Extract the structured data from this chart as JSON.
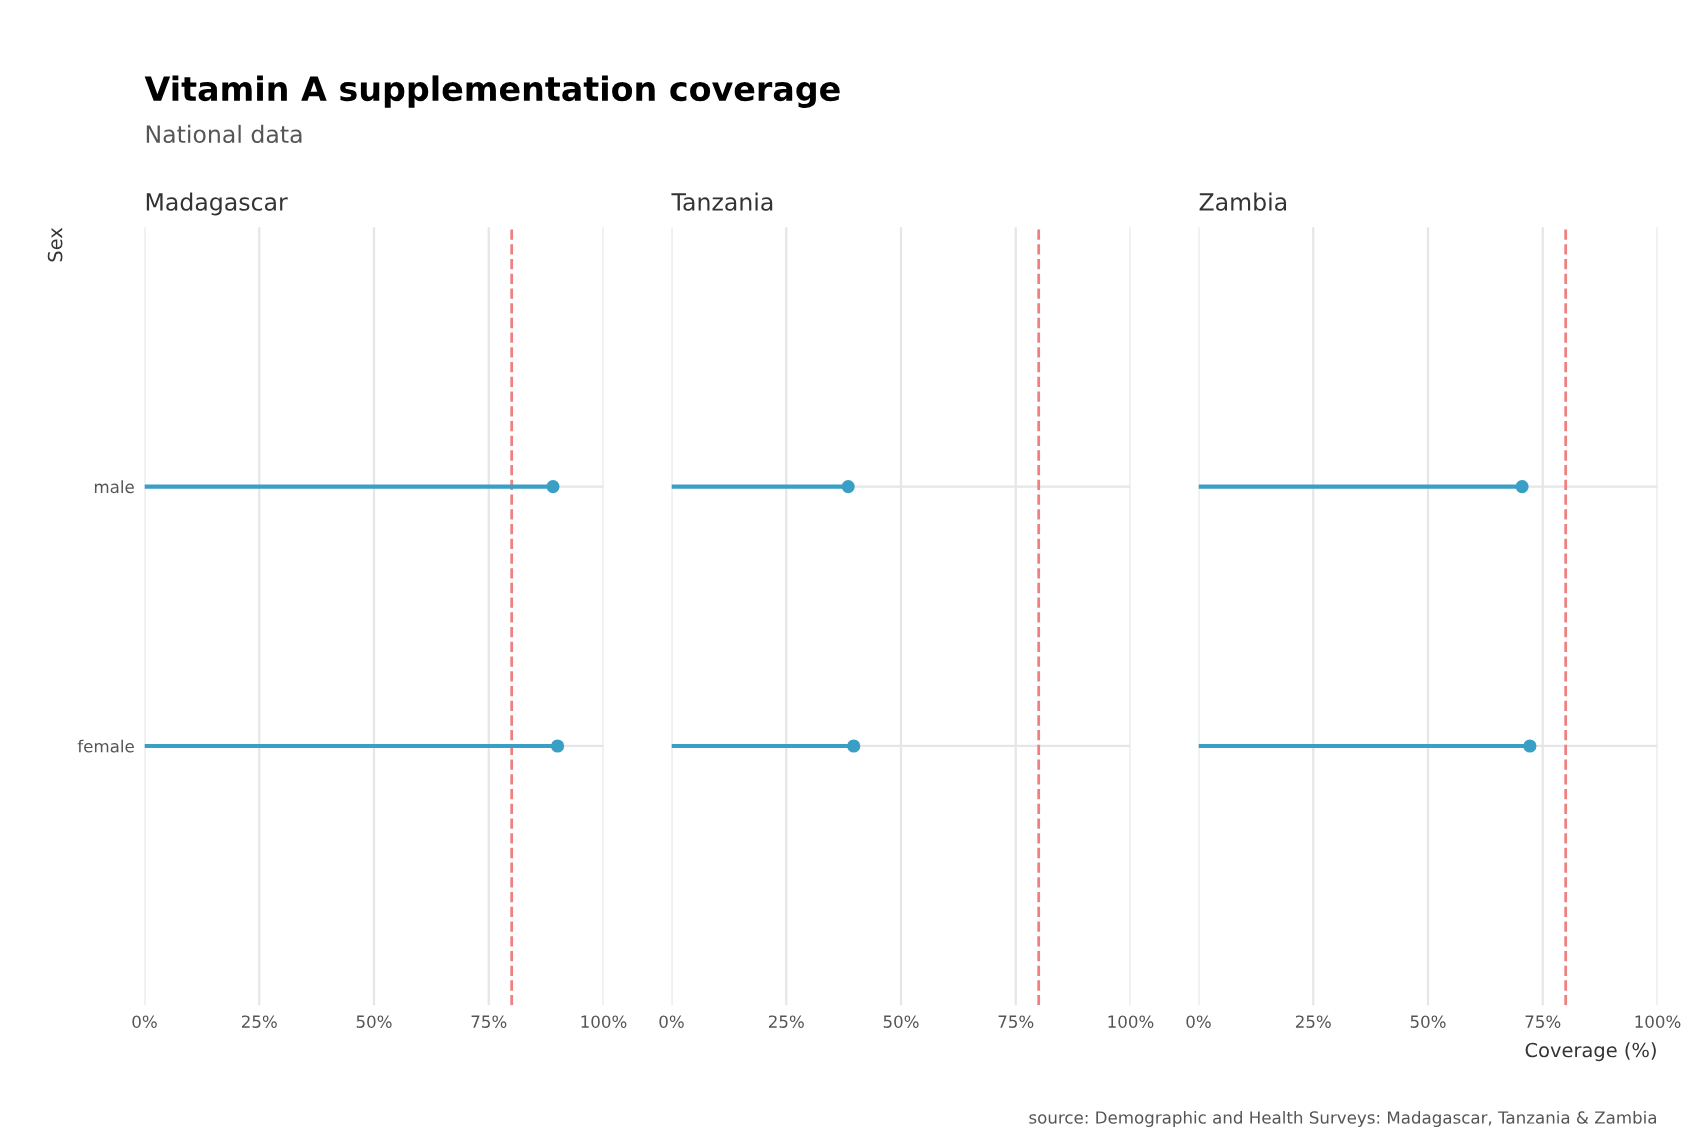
{
  "chart_data": [
    {
      "type": "lollipop",
      "title": "Vitamin A supplementation coverage",
      "subtitle": "National data",
      "annotations": [
        "Madagascar"
      ],
      "ylabel": "Sex",
      "orientation": "horizontal",
      "categories": [
        "male",
        "female"
      ],
      "series": [
        {
          "color": "#3a9fc4",
          "values": [
            89,
            90
          ]
        }
      ],
      "xlim": [
        0,
        100
      ],
      "xticks": [
        {
          "value": 0,
          "label": "0%"
        },
        {
          "value": 25,
          "label": "25%"
        },
        {
          "value": 50,
          "label": "50%"
        },
        {
          "value": 75,
          "label": "75%"
        },
        {
          "value": 100,
          "label": "100%"
        }
      ],
      "ref_lines": [
        {
          "axis": "x",
          "value": 80,
          "color": "#f08080",
          "line_style": "dashed"
        }
      ],
      "grid": true,
      "marker": "circle"
    },
    {
      "type": "lollipop",
      "annotations": [
        "Tanzania"
      ],
      "orientation": "horizontal",
      "categories": [
        null,
        null
      ],
      "series": [
        {
          "color": "#3a9fc4",
          "values": [
            38.5,
            39.7
          ]
        }
      ],
      "xlim": [
        0,
        100
      ],
      "xticks": [
        {
          "value": 0,
          "label": "0%"
        },
        {
          "value": 25,
          "label": "25%"
        },
        {
          "value": 50,
          "label": "50%"
        },
        {
          "value": 75,
          "label": "75%"
        },
        {
          "value": 100,
          "label": "100%"
        }
      ],
      "ref_lines": [
        {
          "axis": "x",
          "value": 80,
          "color": "#f08080",
          "line_style": "dashed"
        }
      ],
      "grid": true,
      "marker": "circle",
      "tick_labels": "x"
    },
    {
      "type": "lollipop",
      "annotations": [
        "Zambia",
        "source: Demographic and Health Surveys: Madagascar, Tanzania & Zambia"
      ],
      "xlabel": "Coverage (%)",
      "orientation": "horizontal",
      "categories": [
        null,
        null
      ],
      "series": [
        {
          "color": "#3a9fc4",
          "values": [
            70.5,
            72.2
          ]
        }
      ],
      "xlim": [
        0,
        100
      ],
      "xticks": [
        {
          "value": 0,
          "label": "0%"
        },
        {
          "value": 25,
          "label": "25%"
        },
        {
          "value": 50,
          "label": "50%"
        },
        {
          "value": 75,
          "label": "75%"
        },
        {
          "value": 100,
          "label": "100%"
        }
      ],
      "ref_lines": [
        {
          "axis": "x",
          "value": 80,
          "color": "#f08080",
          "line_style": "dashed"
        }
      ],
      "grid": true,
      "marker": "circle",
      "tick_labels": "x"
    }
  ]
}
